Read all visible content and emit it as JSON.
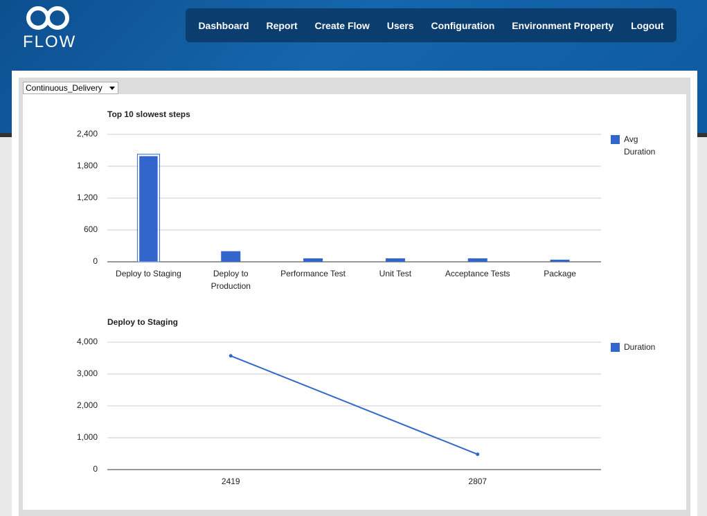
{
  "logo": {
    "text": "FLOW"
  },
  "nav": [
    "Dashboard",
    "Report",
    "Create Flow",
    "Users",
    "Configuration",
    "Environment Property",
    "Logout"
  ],
  "select": {
    "value": "Continuous_Delivery"
  },
  "chart_data": [
    {
      "type": "bar",
      "title": "Top 10 slowest steps",
      "categories": [
        "Deploy to Staging",
        "Deploy to Production",
        "Performance Test",
        "Unit Test",
        "Acceptance Tests",
        "Package"
      ],
      "series": [
        {
          "name": "Avg Duration",
          "color": "#3366cc",
          "values": [
            2000,
            200,
            65,
            65,
            65,
            40
          ]
        }
      ],
      "ylim": [
        0,
        2400
      ],
      "yticks": [
        0,
        600,
        {
          "value": 1200,
          "label": "1,200"
        },
        {
          "value": 1800,
          "label": "1,800"
        },
        {
          "value": 2400,
          "label": "2,400"
        }
      ],
      "grid": true,
      "legend": "right"
    },
    {
      "type": "line",
      "title": "Deploy to Staging",
      "categories": [
        "2419",
        "2807"
      ],
      "series": [
        {
          "name": "Duration",
          "color": "#3366cc",
          "values": [
            3570,
            480
          ]
        }
      ],
      "ylim": [
        0,
        4000
      ],
      "yticks": [
        0,
        {
          "value": 1000,
          "label": "1,000"
        },
        {
          "value": 2000,
          "label": "2,000"
        },
        {
          "value": 3000,
          "label": "3,000"
        },
        {
          "value": 4000,
          "label": "4,000"
        }
      ],
      "grid": true,
      "legend": "right"
    }
  ]
}
